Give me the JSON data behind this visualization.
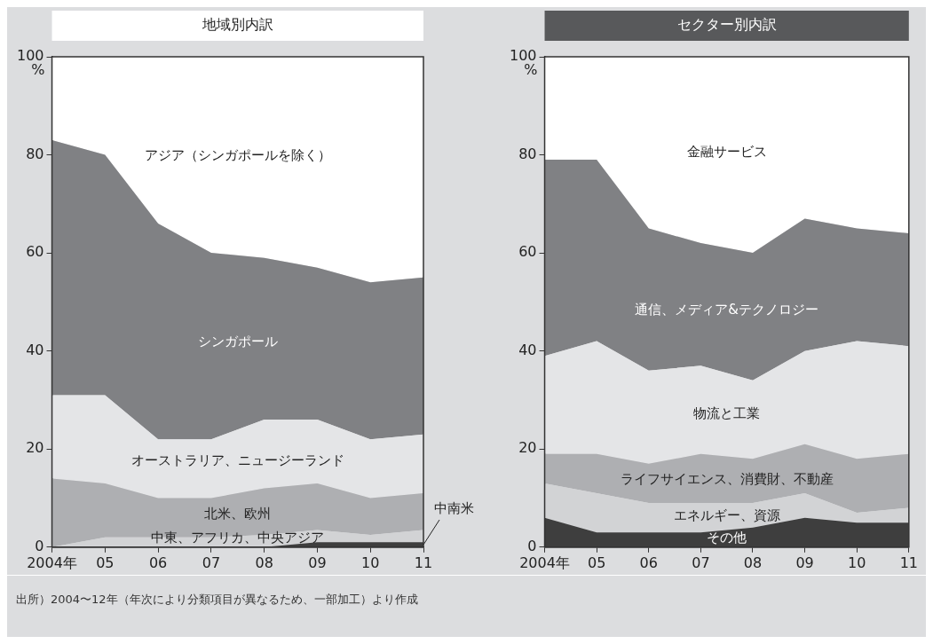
{
  "chart_data": [
    {
      "type": "area",
      "title": "地域別内訳",
      "ylabel": "%",
      "categories": [
        "2004年",
        "05",
        "06",
        "07",
        "08",
        "09",
        "10",
        "11"
      ],
      "stacked": true,
      "ylim": [
        0,
        100
      ],
      "yticks": [
        0,
        20,
        40,
        60,
        80,
        100
      ],
      "grid": false,
      "legend": false,
      "series": [
        {
          "name": "中南米",
          "color": "#3e3e3e",
          "values": [
            0,
            0,
            0,
            0,
            0,
            1,
            1,
            1
          ]
        },
        {
          "name": "中東、アフリカ、中央アジア",
          "color": "#d2d3d5",
          "values": [
            0,
            2,
            2,
            2,
            2.5,
            2.5,
            1.5,
            2.5
          ]
        },
        {
          "name": "北米、欧州",
          "color": "#aeafb2",
          "values": [
            14,
            11,
            8,
            8,
            9.5,
            9.5,
            7.5,
            7.5
          ]
        },
        {
          "name": "オーストラリア、ニュージーランド",
          "color": "#e4e5e7",
          "values": [
            17,
            18,
            12,
            12,
            14,
            13,
            12,
            12
          ]
        },
        {
          "name": "シンガポール",
          "color": "#808184",
          "values": [
            52,
            49,
            44,
            38,
            33,
            31,
            32,
            32
          ]
        },
        {
          "name": "アジア（シンガポールを除く）",
          "color": "#ffffff",
          "values": [
            17,
            20,
            34,
            40,
            41,
            43,
            46,
            45
          ]
        }
      ],
      "annotations": [
        "出所）2004〜12年（年次により分類項目が異なるため、一部加工）より作成"
      ]
    },
    {
      "type": "area",
      "title": "セクター別内訳",
      "ylabel": "%",
      "categories": [
        "2004年",
        "05",
        "06",
        "07",
        "08",
        "09",
        "10",
        "11"
      ],
      "stacked": true,
      "ylim": [
        0,
        100
      ],
      "yticks": [
        0,
        20,
        40,
        60,
        80,
        100
      ],
      "grid": false,
      "legend": false,
      "series": [
        {
          "name": "その他",
          "color": "#3e3e3e",
          "values": [
            6,
            3,
            3,
            3,
            4,
            6,
            5,
            5
          ]
        },
        {
          "name": "エネルギー、資源",
          "color": "#d2d3d5",
          "values": [
            7,
            8,
            6,
            6,
            5,
            5,
            2,
            3
          ]
        },
        {
          "name": "ライフサイエンス、消費財、不動産",
          "color": "#aeafb2",
          "values": [
            6,
            8,
            8,
            10,
            9,
            10,
            11,
            11
          ]
        },
        {
          "name": "物流と工業",
          "color": "#e4e5e7",
          "values": [
            20,
            23,
            19,
            18,
            16,
            19,
            24,
            22
          ]
        },
        {
          "name": "通信、メディア&テクノロジー",
          "color": "#808184",
          "values": [
            40,
            37,
            29,
            25,
            26,
            27,
            23,
            23
          ]
        },
        {
          "name": "金融サービス",
          "color": "#ffffff",
          "values": [
            21,
            21,
            35,
            38,
            40,
            33,
            35,
            36
          ]
        }
      ]
    }
  ]
}
